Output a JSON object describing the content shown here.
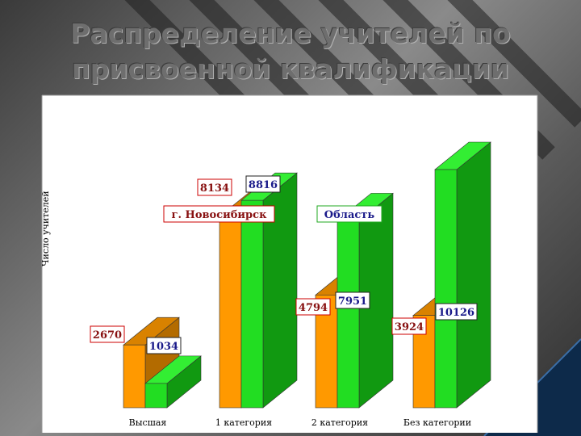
{
  "title_line1": "Распределение учителей по",
  "title_line2": "присвоенной квалификации",
  "chart_data": {
    "type": "bar",
    "ylabel": "Число учителей",
    "categories": [
      "Высшая",
      "1 категория",
      "2 категория",
      "Без категории"
    ],
    "series": [
      {
        "name": "г. Новосибирск",
        "color": "#ff9900",
        "values": [
          2670,
          8134,
          4794,
          3924
        ]
      },
      {
        "name": "Область",
        "color": "#22dd22",
        "values": [
          1034,
          8816,
          7951,
          10126
        ]
      }
    ],
    "legend_labels": [
      "г. Новосибирск",
      "Область"
    ],
    "ylim": [
      0,
      10126
    ]
  }
}
